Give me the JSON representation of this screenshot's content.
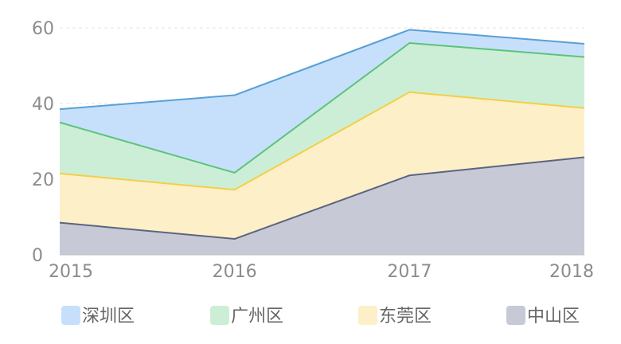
{
  "chart_data": {
    "type": "area",
    "stacked": true,
    "categories": [
      "2015",
      "2016",
      "2017",
      "2018"
    ],
    "series": [
      {
        "name": "中山区",
        "values": [
          8.5,
          4.2,
          21,
          25.8
        ],
        "color": "#5c6480",
        "fill": "#c7cad6"
      },
      {
        "name": "东莞区",
        "values": [
          13,
          13,
          22,
          13
        ],
        "color": "#f2cf4a",
        "fill": "#fdefc8"
      },
      {
        "name": "广州区",
        "values": [
          13.5,
          4.5,
          13,
          13.5
        ],
        "color": "#5cc37b",
        "fill": "#cdeed6"
      },
      {
        "name": "深圳区",
        "values": [
          3.5,
          20.5,
          3.5,
          3.5
        ],
        "color": "#5a9fd6",
        "fill": "#c6e0fb"
      }
    ],
    "yticks": [
      0,
      20,
      40,
      60
    ],
    "ylim": [
      0,
      60
    ],
    "grid": true,
    "legend_position": "bottom",
    "legend_order": [
      "深圳区",
      "广州区",
      "东莞区",
      "中山区"
    ]
  }
}
